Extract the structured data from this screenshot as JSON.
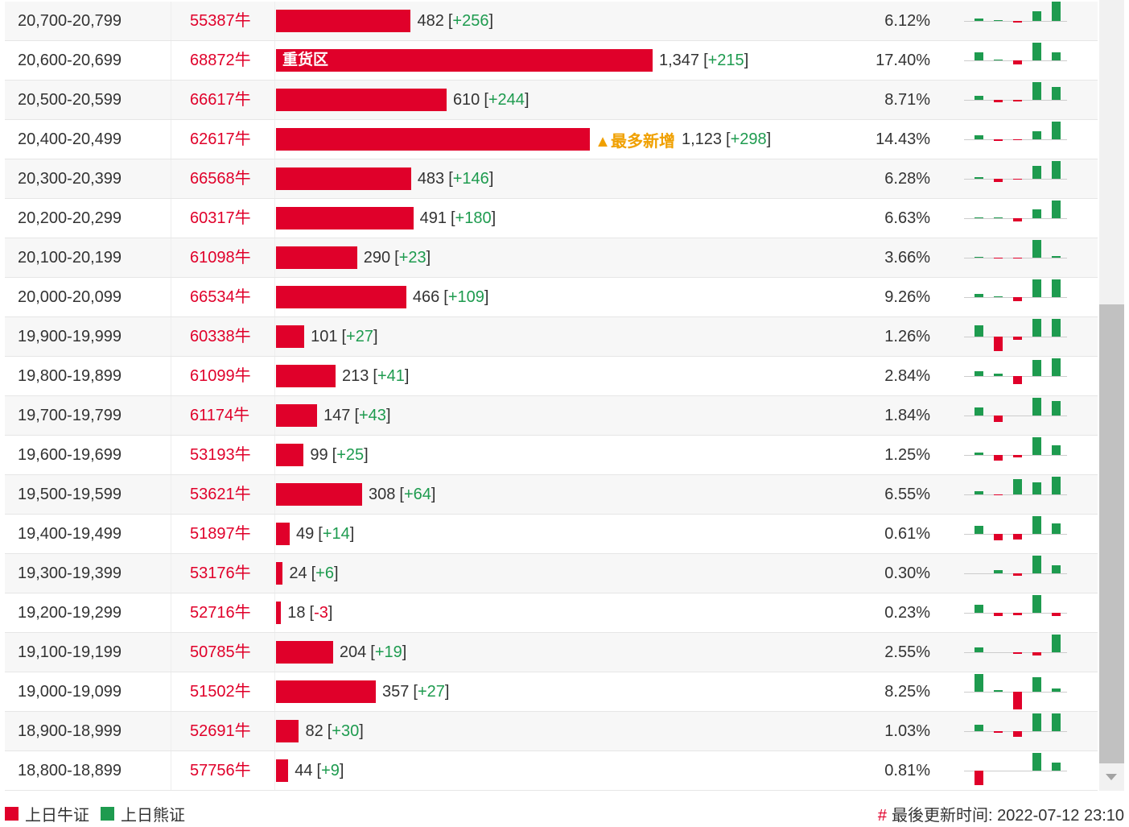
{
  "table": {
    "rows": [
      {
        "range": "20,700-20,799",
        "code": "55387牛",
        "value": 482,
        "change": "+256",
        "percent": "6.12%",
        "mini": [
          3,
          1,
          -2,
          12,
          24
        ]
      },
      {
        "range": "20,600-20,699",
        "code": "68872牛",
        "value": 1347,
        "value_label": "1,347",
        "inner_label": "重货区",
        "change": "+215",
        "percent": "17.40%",
        "mini": [
          10,
          1,
          -5,
          22,
          10
        ]
      },
      {
        "range": "20,500-20,599",
        "code": "66617牛",
        "value": 610,
        "change": "+244",
        "percent": "8.71%",
        "mini": [
          5,
          -3,
          -2,
          22,
          16
        ]
      },
      {
        "range": "20,400-20,499",
        "code": "62617牛",
        "value": 1123,
        "value_label": "1,123",
        "annotation": "▲最多新增",
        "change": "+298",
        "percent": "14.43%",
        "mini": [
          5,
          -2,
          -1,
          10,
          22
        ]
      },
      {
        "range": "20,300-20,399",
        "code": "66568牛",
        "value": 483,
        "change": "+146",
        "percent": "6.28%",
        "mini": [
          2,
          -4,
          -1,
          16,
          22
        ]
      },
      {
        "range": "20,200-20,299",
        "code": "60317牛",
        "value": 491,
        "change": "+180",
        "percent": "6.63%",
        "mini": [
          1,
          1,
          -4,
          11,
          22
        ]
      },
      {
        "range": "20,100-20,199",
        "code": "61098牛",
        "value": 290,
        "change": "+23",
        "percent": "3.66%",
        "mini": [
          1,
          -1,
          -1,
          22,
          2
        ]
      },
      {
        "range": "20,000-20,099",
        "code": "66534牛",
        "value": 466,
        "change": "+109",
        "percent": "9.26%",
        "mini": [
          4,
          1,
          -5,
          22,
          22
        ]
      },
      {
        "range": "19,900-19,999",
        "code": "60338牛",
        "value": 101,
        "change": "+27",
        "percent": "1.26%",
        "mini": [
          14,
          -18,
          -4,
          22,
          22
        ]
      },
      {
        "range": "19,800-19,899",
        "code": "61099牛",
        "value": 213,
        "change": "+41",
        "percent": "2.84%",
        "mini": [
          6,
          3,
          -10,
          20,
          22
        ]
      },
      {
        "range": "19,700-19,799",
        "code": "61174牛",
        "value": 147,
        "change": "+43",
        "percent": "1.84%",
        "mini": [
          10,
          -8,
          0,
          22,
          18
        ]
      },
      {
        "range": "19,600-19,699",
        "code": "53193牛",
        "value": 99,
        "change": "+25",
        "percent": "1.25%",
        "mini": [
          3,
          -7,
          -3,
          22,
          12
        ]
      },
      {
        "range": "19,500-19,599",
        "code": "53621牛",
        "value": 308,
        "change": "+64",
        "percent": "6.55%",
        "mini": [
          4,
          -1,
          19,
          15,
          22
        ]
      },
      {
        "range": "19,400-19,499",
        "code": "51897牛",
        "value": 49,
        "change": "+14",
        "percent": "0.61%",
        "mini": [
          10,
          -8,
          -7,
          22,
          13
        ]
      },
      {
        "range": "19,300-19,399",
        "code": "53176牛",
        "value": 24,
        "change": "+6",
        "percent": "0.30%",
        "mini": [
          0,
          4,
          -3,
          22,
          10
        ]
      },
      {
        "range": "19,200-19,299",
        "code": "52716牛",
        "value": 18,
        "change": "-3",
        "percent": "0.23%",
        "mini": [
          10,
          -4,
          -3,
          22,
          -4
        ]
      },
      {
        "range": "19,100-19,199",
        "code": "50785牛",
        "value": 204,
        "change": "+19",
        "percent": "2.55%",
        "mini": [
          6,
          0,
          -2,
          -4,
          22
        ]
      },
      {
        "range": "19,000-19,099",
        "code": "51502牛",
        "value": 357,
        "change": "+27",
        "percent": "8.25%",
        "mini": [
          22,
          2,
          -22,
          18,
          4
        ]
      },
      {
        "range": "18,900-18,999",
        "code": "52691牛",
        "value": 82,
        "change": "+30",
        "percent": "1.03%",
        "mini": [
          8,
          -2,
          -7,
          22,
          22
        ]
      },
      {
        "range": "18,800-18,899",
        "code": "57756牛",
        "value": 44,
        "change": "+9",
        "percent": "0.81%",
        "mini": [
          -18,
          0,
          0,
          22,
          10
        ]
      }
    ]
  },
  "legend": {
    "bull": "上日牛证",
    "bear": "上日熊证",
    "bull_color": "#e0002a",
    "bear_color": "#1e9b4f"
  },
  "footer": {
    "mark": "#",
    "updated": "最後更新时间: 2022-07-12 23:10"
  }
}
